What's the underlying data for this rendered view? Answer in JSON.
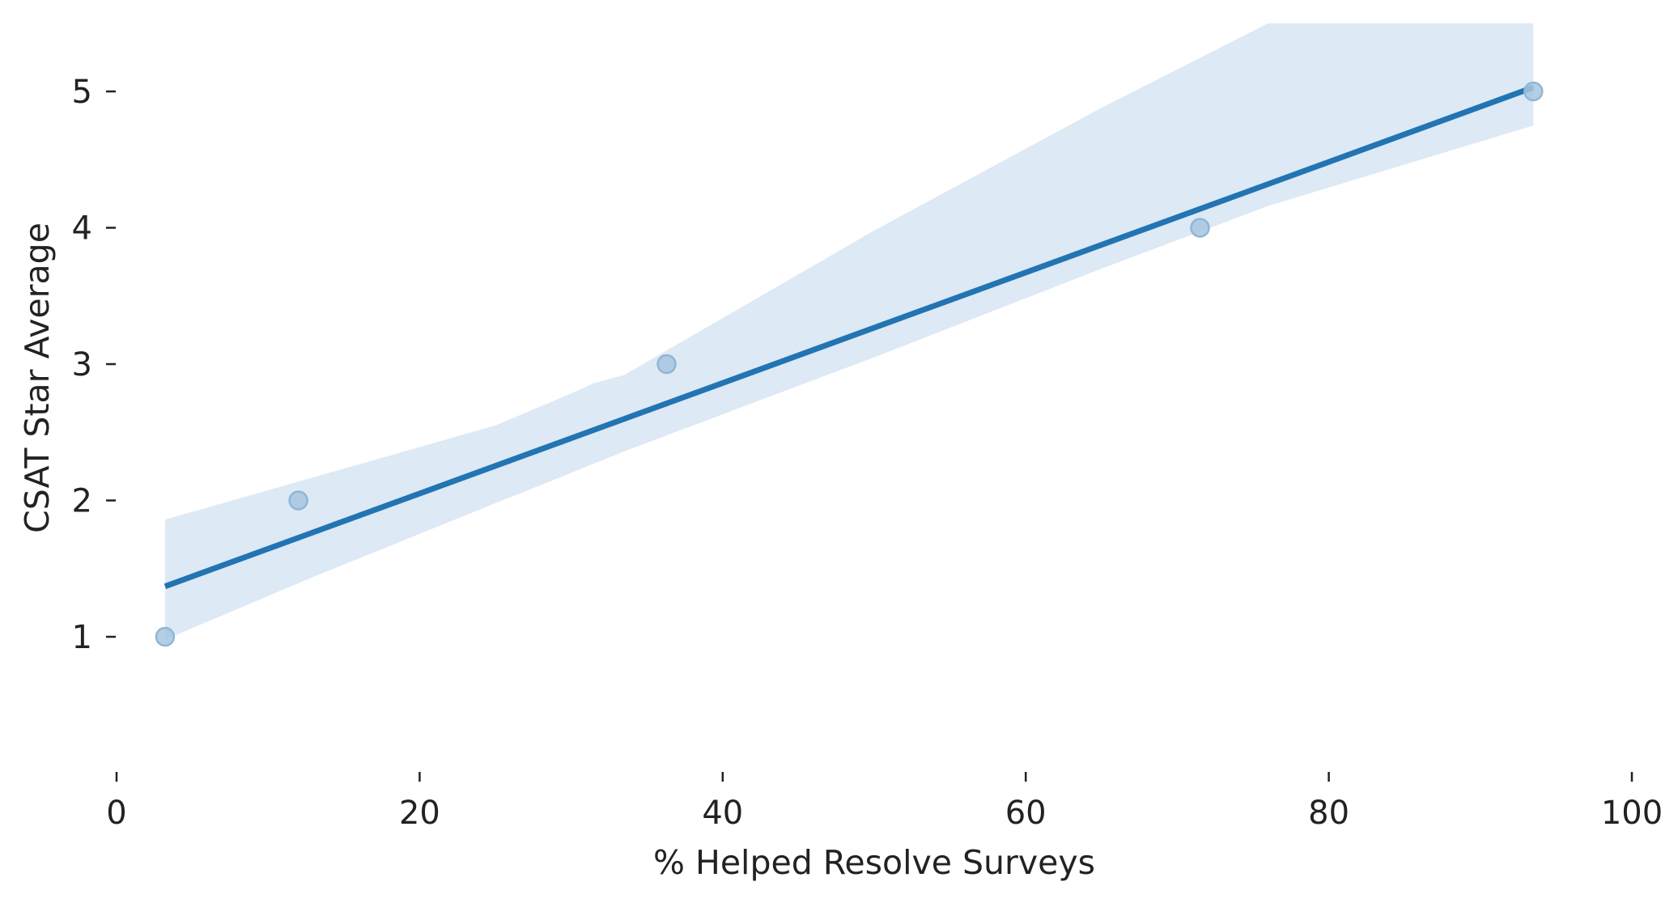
{
  "chart_data": {
    "type": "scatter",
    "xlabel": "% Helped Resolve Surveys",
    "ylabel": "CSAT Star Average",
    "xlim": [
      0,
      100
    ],
    "ylim": [
      0.0,
      5.5
    ],
    "xticks": [
      0,
      20,
      40,
      60,
      80,
      100
    ],
    "xtick_labels": [
      "0",
      "20",
      "40",
      "60",
      "80",
      "100"
    ],
    "yticks": [
      1,
      2,
      3,
      4,
      5
    ],
    "ytick_labels": [
      "1",
      "2",
      "3",
      "4",
      "5"
    ],
    "grid": false,
    "points": [
      {
        "x": 3.2,
        "y": 1
      },
      {
        "x": 12.0,
        "y": 2
      },
      {
        "x": 36.3,
        "y": 3
      },
      {
        "x": 71.5,
        "y": 4
      },
      {
        "x": 93.5,
        "y": 5
      }
    ],
    "regression": {
      "x_range": [
        3.2,
        93.5
      ],
      "y_at_start": 1.37,
      "y_at_end": 5.03,
      "confidence_band": {
        "x": [
          3.2,
          13,
          25,
          29.5,
          31.5,
          33.5,
          50,
          65,
          76,
          93.5
        ],
        "upper": [
          1.86,
          2.17,
          2.55,
          2.76,
          2.86,
          2.92,
          3.98,
          4.88,
          5.5,
          5.5
        ],
        "lower": [
          0.98,
          1.44,
          1.98,
          2.18,
          2.27,
          2.36,
          3.05,
          3.7,
          4.16,
          4.75
        ]
      }
    },
    "colors": {
      "line": "#2274b3",
      "band": "#dde9f4",
      "point_fill": "#a7c6df",
      "point_edge": "#8fb6d6",
      "text": "#222222"
    }
  }
}
